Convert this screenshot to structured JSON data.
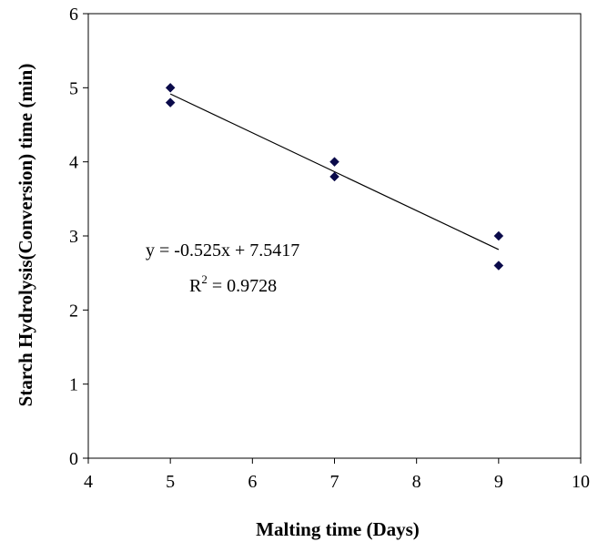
{
  "chart_data": {
    "type": "scatter",
    "title": "",
    "xlabel": "Malting time (Days)",
    "ylabel": "Starch Hydrolysis(Conversion) time (min)",
    "xlim": [
      4,
      10
    ],
    "ylim": [
      0,
      6
    ],
    "xticks": [
      "4",
      "5",
      "6",
      "7",
      "8",
      "9",
      "10"
    ],
    "yticks": [
      "0",
      "1",
      "2",
      "3",
      "4",
      "5",
      "6"
    ],
    "grid": false,
    "legend": "none",
    "marker_color": "#0a0a4a",
    "series": [
      {
        "points": [
          {
            "x": 5,
            "y": 5.0
          },
          {
            "x": 5,
            "y": 4.8
          },
          {
            "x": 7,
            "y": 4.0
          },
          {
            "x": 7,
            "y": 3.8
          },
          {
            "x": 9,
            "y": 3.0
          },
          {
            "x": 9,
            "y": 2.6
          }
        ]
      }
    ],
    "trendline": {
      "slope": -0.525,
      "intercept": 7.5417,
      "x_range": [
        5,
        9
      ],
      "equation_label": "y = -0.525x + 7.5417",
      "r2_prefix": "R",
      "r2_sup": "2",
      "r2_value": " = 0.9728"
    }
  }
}
